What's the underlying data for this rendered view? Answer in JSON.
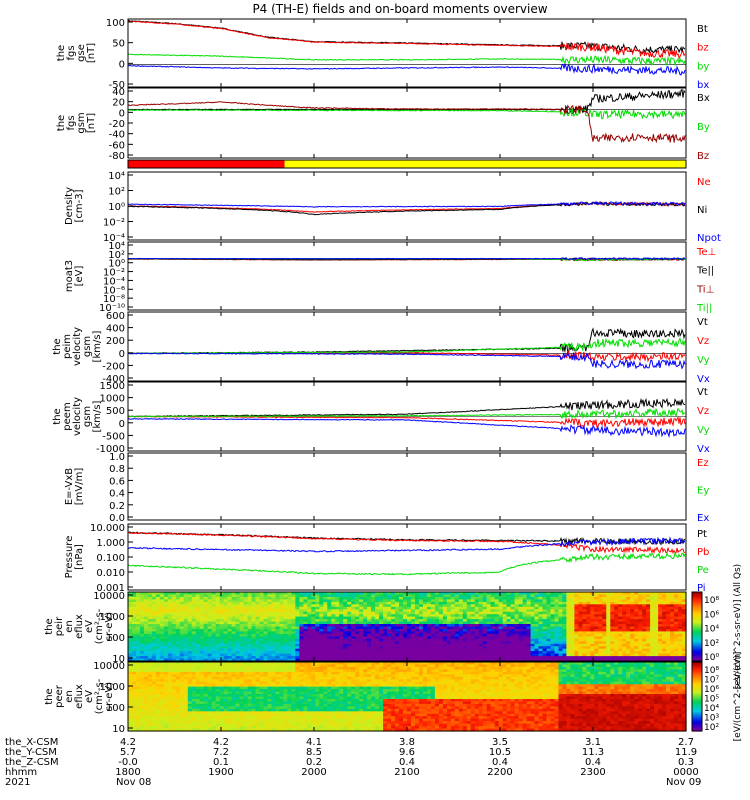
{
  "title": "P4 (TH-E) fields and on-board moments overview",
  "footer": {
    "rows": [
      {
        "label": "the_X-CSM",
        "values": [
          "4.2",
          "4.2",
          "4.1",
          "3.8",
          "3.5",
          "3.1",
          "2.7"
        ]
      },
      {
        "label": "the_Y-CSM",
        "values": [
          "5.7",
          "7.2",
          "8.5",
          "9.6",
          "10.5",
          "11.3",
          "11.9"
        ]
      },
      {
        "label": "the_Z-CSM",
        "values": [
          "-0.0",
          "0.1",
          "0.2",
          "0.4",
          "0.4",
          "0.4",
          "0.3"
        ]
      },
      {
        "label": "hhmm",
        "values": [
          "1800",
          "1900",
          "2000",
          "2100",
          "2200",
          "2300",
          "0000"
        ]
      }
    ],
    "year": "2021",
    "date_start": "Nov 08",
    "date_end": "Nov 09"
  },
  "colors": {
    "black": "#000000",
    "red": "#ff0000",
    "darkred": "#990000",
    "green": "#00dd00",
    "blue": "#0000ff",
    "yellow": "#ffff00"
  },
  "chart_data": [
    {
      "type": "line",
      "ylabel": [
        "the",
        "fgs",
        "gse",
        "[nT]"
      ],
      "ylim": [
        -50,
        100
      ],
      "yticks": [
        "100",
        "50",
        "0",
        "-50"
      ],
      "x_range_hhmm": [
        "1800",
        "0000"
      ],
      "series": [
        {
          "name": "Bt",
          "color": "#000000",
          "points": [
            [
              1800,
              96
            ],
            [
              1830,
              90
            ],
            [
              1900,
              80
            ],
            [
              1930,
              60
            ],
            [
              2000,
              50
            ],
            [
              2100,
              47
            ],
            [
              2200,
              43
            ],
            [
              2300,
              40
            ],
            [
              2330,
              33
            ],
            [
              2400,
              32
            ]
          ]
        },
        {
          "name": "bz",
          "color": "#ff0000",
          "points": [
            [
              1800,
              95
            ],
            [
              1830,
              89
            ],
            [
              1900,
              79
            ],
            [
              1930,
              59
            ],
            [
              2000,
              49
            ],
            [
              2100,
              46
            ],
            [
              2200,
              42
            ],
            [
              2300,
              38
            ],
            [
              2330,
              25
            ],
            [
              2400,
              22
            ]
          ]
        },
        {
          "name": "by",
          "color": "#00dd00",
          "points": [
            [
              1800,
              22
            ],
            [
              1900,
              18
            ],
            [
              2000,
              10
            ],
            [
              2100,
              10
            ],
            [
              2200,
              12
            ],
            [
              2300,
              10
            ],
            [
              2400,
              5
            ]
          ]
        },
        {
          "name": "bx",
          "color": "#0000ff",
          "points": [
            [
              1800,
              -3
            ],
            [
              1900,
              -8
            ],
            [
              2000,
              -10
            ],
            [
              2100,
              -8
            ],
            [
              2200,
              -6
            ],
            [
              2300,
              -10
            ],
            [
              2400,
              -15
            ]
          ]
        }
      ]
    },
    {
      "type": "line",
      "ylabel": [
        "the",
        "fgs",
        "gsm",
        "[nT]"
      ],
      "ylim": [
        -90,
        40
      ],
      "yticks": [
        "40",
        "20",
        "0",
        "-20",
        "-40",
        "-60",
        "-80"
      ],
      "series": [
        {
          "name": "Bx",
          "color": "#000000",
          "points": [
            [
              1800,
              0
            ],
            [
              1900,
              0
            ],
            [
              2000,
              0
            ],
            [
              2100,
              0
            ],
            [
              2200,
              0
            ],
            [
              2256,
              0
            ],
            [
              2300,
              20
            ],
            [
              2330,
              25
            ],
            [
              2400,
              30
            ]
          ]
        },
        {
          "name": "By",
          "color": "#00dd00",
          "points": [
            [
              1800,
              -1
            ],
            [
              2200,
              -2
            ],
            [
              2256,
              -5
            ],
            [
              2300,
              -10
            ],
            [
              2330,
              -8
            ],
            [
              2400,
              -10
            ]
          ]
        },
        {
          "name": "Bz",
          "color": "#990000",
          "points": [
            [
              1800,
              8
            ],
            [
              1845,
              12
            ],
            [
              1900,
              14
            ],
            [
              1930,
              8
            ],
            [
              2000,
              3
            ],
            [
              2100,
              1
            ],
            [
              2200,
              1
            ],
            [
              2256,
              0
            ],
            [
              2300,
              -55
            ],
            [
              2330,
              -50
            ],
            [
              2400,
              -55
            ]
          ]
        }
      ]
    },
    {
      "type": "line",
      "note": "mode bar",
      "segments": [
        {
          "from": 1800,
          "to": 1941,
          "color": "#ff0000"
        },
        {
          "from": 1941,
          "to": 2400,
          "color": "#ffff00"
        }
      ]
    },
    {
      "type": "line",
      "ylabel": [
        "Density",
        "[cm-3]"
      ],
      "log": true,
      "ylim_exp": [
        -4,
        4
      ],
      "yticks": [
        "10⁴",
        "10²",
        "10⁰",
        "10⁻²",
        "10⁻⁴"
      ],
      "series": [
        {
          "name": "Ne",
          "color": "#ff0000",
          "points": [
            [
              1800,
              1.0
            ],
            [
              2000,
              0.2
            ],
            [
              2200,
              0.5
            ],
            [
              2300,
              2.0
            ],
            [
              2400,
              1.5
            ]
          ]
        },
        {
          "name": "Ni",
          "color": "#000000",
          "points": [
            [
              1800,
              0.9
            ],
            [
              2000,
              0.1
            ],
            [
              2200,
              0.4
            ],
            [
              2300,
              1.9
            ],
            [
              2400,
              1.4
            ]
          ]
        },
        {
          "name": "Npot",
          "color": "#0000ff",
          "points": [
            [
              1800,
              1.6
            ],
            [
              2000,
              0.8
            ],
            [
              2200,
              0.9
            ],
            [
              2300,
              2.2
            ],
            [
              2400,
              1.8
            ]
          ]
        }
      ]
    },
    {
      "type": "line",
      "ylabel": [
        "moat3",
        "[eV]"
      ],
      "log": true,
      "ylim_exp": [
        -10,
        4
      ],
      "yticks": [
        "10⁴",
        "10²",
        "10⁰",
        "10⁻²",
        "10⁻⁴",
        "10⁻⁶",
        "10⁻⁸",
        "10⁻¹⁰"
      ],
      "series": [
        {
          "name": "Te⊥",
          "color": "#ff0000",
          "points": [
            [
              1800,
              3
            ],
            [
              2000,
              2
            ],
            [
              2200,
              2.5
            ],
            [
              2300,
              3
            ],
            [
              2400,
              2.5
            ]
          ]
        },
        {
          "name": "Te||",
          "color": "#000000",
          "points": [
            [
              1800,
              3.2
            ],
            [
              2000,
              2.2
            ],
            [
              2200,
              2.7
            ],
            [
              2300,
              3.2
            ],
            [
              2400,
              2.7
            ]
          ]
        },
        {
          "name": "Ti⊥",
          "color": "#990000",
          "points": [
            [
              1800,
              3.5
            ],
            [
              2000,
              3.4
            ],
            [
              2200,
              3.5
            ],
            [
              2256,
              2.0
            ],
            [
              2300,
              2.0
            ],
            [
              2400,
              3.3
            ]
          ]
        },
        {
          "name": "Ti||",
          "color": "#00dd00",
          "points": [
            [
              1800,
              3.6
            ],
            [
              2000,
              3.5
            ],
            [
              2200,
              3.6
            ],
            [
              2256,
              2.1
            ],
            [
              2300,
              2.1
            ],
            [
              2400,
              3.4
            ]
          ]
        },
        {
          "name": "",
          "color": "#0000ff",
          "points": [
            [
              1800,
              3.8
            ],
            [
              2000,
              3.7
            ],
            [
              2200,
              3.8
            ],
            [
              2300,
              3.9
            ],
            [
              2400,
              3.8
            ]
          ]
        }
      ]
    },
    {
      "type": "line",
      "ylabel": [
        "the",
        "peim",
        "velocity",
        "gsm",
        "[km/s]"
      ],
      "ylim": [
        -400,
        600
      ],
      "yticks": [
        "600",
        "400",
        "200",
        "0",
        "-200",
        "-400"
      ],
      "series": [
        {
          "name": "Vt",
          "color": "#000000",
          "points": [
            [
              1800,
              0
            ],
            [
              2000,
              20
            ],
            [
              2200,
              60
            ],
            [
              2256,
              80
            ],
            [
              2300,
              300
            ],
            [
              2330,
              280
            ],
            [
              2400,
              290
            ]
          ]
        },
        {
          "name": "Vz",
          "color": "#ff0000",
          "points": [
            [
              1800,
              0
            ],
            [
              2100,
              10
            ],
            [
              2256,
              -30
            ],
            [
              2300,
              -60
            ],
            [
              2400,
              -40
            ]
          ]
        },
        {
          "name": "Vy",
          "color": "#00dd00",
          "points": [
            [
              1800,
              0
            ],
            [
              2100,
              20
            ],
            [
              2256,
              100
            ],
            [
              2300,
              150
            ],
            [
              2400,
              160
            ]
          ]
        },
        {
          "name": "Vx",
          "color": "#0000ff",
          "points": [
            [
              1800,
              0
            ],
            [
              2100,
              -10
            ],
            [
              2256,
              -50
            ],
            [
              2300,
              -150
            ],
            [
              2400,
              -160
            ]
          ]
        }
      ]
    },
    {
      "type": "line",
      "ylabel": [
        "the",
        "peem",
        "velocity",
        "gsm",
        "[km/s]"
      ],
      "ylim": [
        -1500,
        1500
      ],
      "yticks": [
        "1500",
        "1000",
        "500",
        "0",
        "-500",
        "-1000"
      ],
      "series": [
        {
          "name": "Vt",
          "color": "#000000",
          "points": [
            [
              1800,
              0
            ],
            [
              2100,
              100
            ],
            [
              2200,
              300
            ],
            [
              2300,
              500
            ],
            [
              2400,
              600
            ]
          ]
        },
        {
          "name": "Vz",
          "color": "#ff0000",
          "points": [
            [
              1800,
              0
            ],
            [
              2100,
              -50
            ],
            [
              2300,
              -300
            ],
            [
              2400,
              -200
            ]
          ]
        },
        {
          "name": "Vy",
          "color": "#00dd00",
          "points": [
            [
              1800,
              0
            ],
            [
              2100,
              30
            ],
            [
              2300,
              100
            ],
            [
              2400,
              200
            ]
          ]
        },
        {
          "name": "Vx",
          "color": "#0000ff",
          "points": [
            [
              1800,
              -100
            ],
            [
              2100,
              -150
            ],
            [
              2300,
              -600
            ],
            [
              2400,
              -700
            ]
          ]
        }
      ]
    },
    {
      "type": "line",
      "ylabel": [
        "E=-VxB",
        "[mV/m]"
      ],
      "ylim": [
        0.0,
        1.0
      ],
      "yticks": [
        "1.0",
        "0.8",
        "0.6",
        "0.4",
        "0.2",
        "0.0"
      ],
      "series": [
        {
          "name": "Ez",
          "color": "#ff0000",
          "points": []
        },
        {
          "name": "Ey",
          "color": "#00dd00",
          "points": []
        },
        {
          "name": "Ex",
          "color": "#0000ff",
          "points": []
        }
      ]
    },
    {
      "type": "line",
      "ylabel": [
        "Pressure",
        "[nPa]"
      ],
      "log": true,
      "ylim_exp": [
        -3,
        1
      ],
      "yticks": [
        "10.000",
        "1.000",
        "0.100",
        "0.010",
        "0.001"
      ],
      "series": [
        {
          "name": "Pt",
          "color": "#000000",
          "points": [
            [
              1800,
              3.0
            ],
            [
              1900,
              2.2
            ],
            [
              2000,
              1.4
            ],
            [
              2100,
              1.1
            ],
            [
              2200,
              1.0
            ],
            [
              2300,
              0.9
            ],
            [
              2400,
              0.85
            ]
          ]
        },
        {
          "name": "Pb",
          "color": "#ff0000",
          "points": [
            [
              1800,
              2.9
            ],
            [
              1900,
              2.1
            ],
            [
              2000,
              1.3
            ],
            [
              2100,
              1.0
            ],
            [
              2200,
              0.9
            ],
            [
              2300,
              0.3
            ],
            [
              2400,
              0.25
            ]
          ]
        },
        {
          "name": "Pe",
          "color": "#00dd00",
          "points": [
            [
              1800,
              0.03
            ],
            [
              1900,
              0.018
            ],
            [
              2000,
              0.01
            ],
            [
              2100,
              0.009
            ],
            [
              2200,
              0.012
            ],
            [
              2300,
              0.1
            ],
            [
              2400,
              0.12
            ]
          ]
        },
        {
          "name": "Pi",
          "color": "#0000ff",
          "points": [
            [
              1800,
              0.35
            ],
            [
              1900,
              0.28
            ],
            [
              2000,
              0.22
            ],
            [
              2100,
              0.25
            ],
            [
              2200,
              0.3
            ],
            [
              2300,
              0.8
            ],
            [
              2400,
              1.0
            ]
          ]
        }
      ]
    },
    {
      "type": "heatmap",
      "ylabel": [
        "the",
        "peir",
        "en",
        "eflux",
        "eV",
        "(cm²-s-",
        "sr-eV)"
      ],
      "log": true,
      "yticks": [
        "10000",
        "1000",
        "100",
        "10"
      ],
      "colorbar": {
        "label": "[eV/(cm^2-s-sr-eV)] (All Qs)",
        "ticks": [
          "10⁸",
          "10⁶",
          "10⁴",
          "10²",
          "10⁰"
        ]
      }
    },
    {
      "type": "heatmap",
      "ylabel": [
        "the",
        "peer",
        "en",
        "eflux",
        "eV",
        "(cm²-s-",
        "sr-eV)"
      ],
      "log": true,
      "yticks": [
        "10000",
        "1000",
        "100",
        "10"
      ],
      "colorbar": {
        "label": "[eV/(cm^2-s-sr-eV)]",
        "ticks": [
          "10⁸",
          "10⁷",
          "10⁶",
          "10⁵",
          "10⁴",
          "10³",
          "10²"
        ]
      }
    }
  ]
}
